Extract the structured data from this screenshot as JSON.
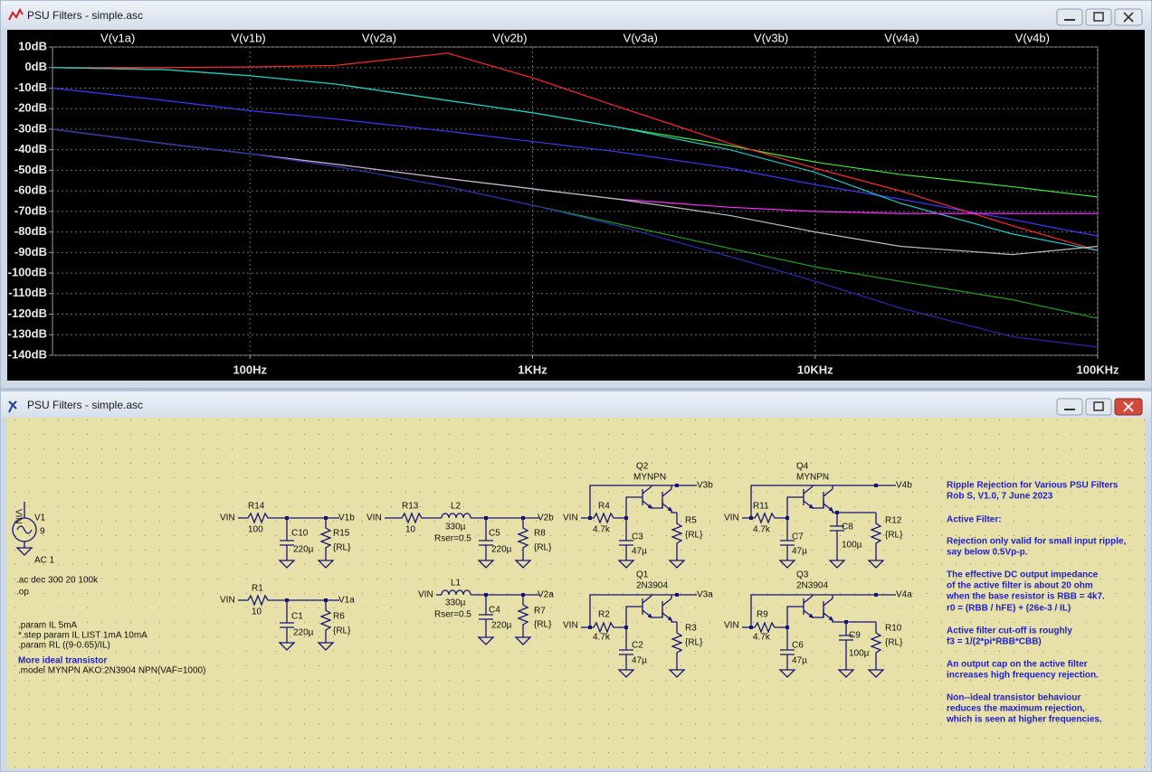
{
  "windows": [
    {
      "title": "PSU Filters - simple.asc"
    },
    {
      "title": "PSU Filters - simple.asc"
    }
  ],
  "chart_data": {
    "type": "line",
    "log_x": true,
    "grid": true,
    "x": [
      20,
      50,
      100,
      200,
      500,
      1000,
      2000,
      5000,
      10000,
      20000,
      50000,
      100000
    ],
    "xlim": [
      20,
      100000
    ],
    "xticks": [
      {
        "value": 100,
        "label": "100Hz"
      },
      {
        "value": 1000,
        "label": "1KHz"
      },
      {
        "value": 10000,
        "label": "10KHz"
      },
      {
        "value": 100000,
        "label": "100KHz"
      }
    ],
    "ylim": [
      -140,
      10
    ],
    "yticks": [
      {
        "value": 10,
        "label": "10dB"
      },
      {
        "value": 0,
        "label": "0dB"
      },
      {
        "value": -10,
        "label": "-10dB"
      },
      {
        "value": -20,
        "label": "-20dB"
      },
      {
        "value": -30,
        "label": "-30dB"
      },
      {
        "value": -40,
        "label": "-40dB"
      },
      {
        "value": -50,
        "label": "-50dB"
      },
      {
        "value": -60,
        "label": "-60dB"
      },
      {
        "value": -70,
        "label": "-70dB"
      },
      {
        "value": -80,
        "label": "-80dB"
      },
      {
        "value": -90,
        "label": "-90dB"
      },
      {
        "value": -100,
        "label": "-100dB"
      },
      {
        "value": -110,
        "label": "-110dB"
      },
      {
        "value": -120,
        "label": "-120dB"
      },
      {
        "value": -130,
        "label": "-130dB"
      },
      {
        "value": -140,
        "label": "-140dB"
      }
    ],
    "series": [
      {
        "name": "V(v1a)",
        "color": "#3ee63e",
        "values": [
          0,
          -1,
          -4,
          -8,
          -16,
          -22,
          -29,
          -38,
          -46,
          -52,
          -58,
          -63
        ]
      },
      {
        "name": "V(v1b)",
        "color": "#3a3aff",
        "values": [
          -10,
          -16,
          -21,
          -25,
          -31,
          -36,
          -41,
          -49,
          -57,
          -64,
          -74,
          -82
        ]
      },
      {
        "name": "V(v2a)",
        "color": "#ff2a2a",
        "values": [
          0,
          0,
          0.3,
          1,
          7,
          -5,
          -19,
          -37,
          -49,
          -60,
          -77,
          -89
        ]
      },
      {
        "name": "V(v2b)",
        "color": "#1fc8c8",
        "values": [
          0,
          -1,
          -4,
          -8,
          -16,
          -22,
          -29,
          -40,
          -51,
          -66,
          -81,
          -89
        ]
      },
      {
        "name": "V(v3a)",
        "color": "#ff2aff",
        "values": [
          -30,
          -37,
          -42,
          -47,
          -54,
          -59,
          -64,
          -68,
          -70,
          -71,
          -71,
          -71
        ]
      },
      {
        "name": "V(v3b)",
        "color": "#bdbdbd",
        "values": [
          -30,
          -37,
          -42,
          -47,
          -54,
          -59,
          -64,
          -72,
          -80,
          -87,
          -91,
          -87
        ]
      },
      {
        "name": "V(v4a)",
        "color": "#22a022",
        "values": [
          -30,
          -37,
          -42,
          -48,
          -58,
          -67,
          -76,
          -88,
          -97,
          -104,
          -113,
          -122
        ]
      },
      {
        "name": "V(v4b)",
        "color": "#2a2ab4",
        "values": [
          -30,
          -37,
          -42,
          -48,
          -58,
          -67,
          -77,
          -92,
          -104,
          -117,
          -131,
          -136
        ]
      }
    ]
  },
  "schematic": {
    "labels": [
      "VIN",
      "V1",
      "9",
      "AC 1",
      "VIN",
      "R14",
      "100",
      "C10",
      "220µ",
      "R15",
      "{RL}",
      "V1b",
      "VIN",
      "R1",
      "10",
      "C1",
      "220µ",
      "R6",
      "{RL}",
      "V1a",
      "VIN",
      "R13",
      "10",
      "L2",
      "330µ",
      "Rser=0.5",
      "C5",
      "220µ",
      "R8",
      "{RL}",
      "V2b",
      "VIN",
      "L1",
      "330µ",
      "Rser=0.5",
      "C4",
      "220µ",
      "R7",
      "{RL}",
      "V2a",
      "Q2",
      "MYNPN",
      "V3b",
      "VIN",
      "R4",
      "4.7k",
      "C3",
      "47µ",
      "R5",
      "{RL}",
      "Q1",
      "2N3904",
      "V3a",
      "VIN",
      "R2",
      "4.7k",
      "C2",
      "47µ",
      "R3",
      "{RL}",
      "Q4",
      "MYNPN",
      "V4b",
      "VIN",
      "R11",
      "4.7k",
      "C7",
      "47µ",
      "C8",
      "100µ",
      "R12",
      "{RL}",
      "Q3",
      "2N3904",
      "V4a",
      "VIN",
      "R9",
      "4.7k",
      "C6",
      "47µ",
      "C9",
      "100µ",
      "R10",
      "{RL}"
    ],
    "directives": [
      ".ac dec 300 20 100k",
      ".op",
      ".param IL 5mA",
      "*.step param IL LIST 1mA 10mA",
      ".param RL ((9-0.65)/IL)",
      "More ideal transistor",
      ".model MYNPN AKO:2N3904 NPN(VAF=1000)"
    ],
    "notes": [
      "Ripple Rejection for Various PSU Filters",
      "Rob S, V1.0, 7 June 2023",
      "Active Filter:",
      "Rejection only valid for small input ripple,",
      "say below 0.5Vp-p.",
      "The effective DC output impedance",
      "of the active filter is about 20 ohm",
      "when the base resistor is RBB = 4k7.",
      "r0 = (RBB / hFE) + (26e-3 / IL)",
      "Active filter cut-off is roughly",
      "f3 = 1/(2*pi*RBB*CBB)",
      "An output cap on the active filter",
      "increases high frequency rejection.",
      "Non--ideal transistor behaviour",
      "reduces the maximum rejection,",
      "which is seen at higher frequencies."
    ]
  }
}
